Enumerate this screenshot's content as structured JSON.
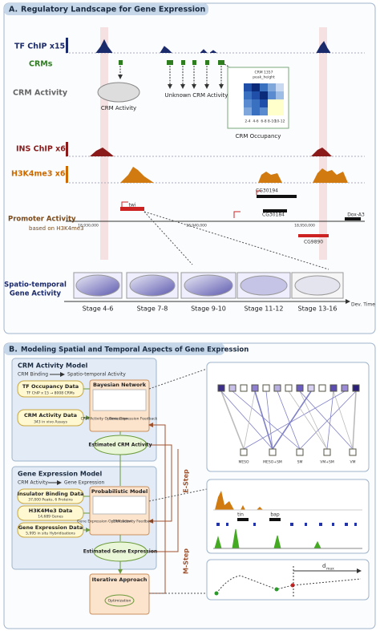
{
  "panel_a": {
    "label": "A.",
    "title": "Regulatory Landscape for Gene Expression",
    "tracks": {
      "tf_chip": "TF ChIP x15",
      "crms": "CRMs",
      "crm_activity": "CRM Activity",
      "ins_chip": "INS ChIP x6",
      "h3k4me3": "H3K4me3 x6",
      "promoter_activity": "Promoter Activity",
      "promoter_note": "based on H3K4me3",
      "spatio_temporal": "Spatio-temporal",
      "gene_activity": "Gene Activity"
    },
    "annotations": {
      "crm_activity": "CRM Activity",
      "unknown": "Unknown CRM Activity",
      "occupancy": "CRM Occupancy"
    },
    "heatmap": {
      "title": "CRM 1357",
      "subtitle": "peak_height",
      "x_labels": [
        "2-4",
        "4-6",
        "6-8",
        "8-10",
        "10-12"
      ]
    },
    "genes": [
      "twi",
      "CG30194",
      "CG30184",
      "Dox-A3",
      "CG9890"
    ],
    "coordinates": [
      "18,930,000",
      "18,940,000",
      "18,950,000"
    ],
    "stages": [
      "Stage 4-6",
      "Stage 7-8",
      "Stage 9-10",
      "Stage 11-12",
      "Stage 13-16"
    ],
    "time_axis": "Dev. Time"
  },
  "panel_b": {
    "label": "B.",
    "title": "Modeling Spatial and Temporal Aspects of Gene Expression",
    "crm_model": {
      "title": "CRM Activity Model",
      "from": "CRM Binding",
      "to": "Spatio-temporal Activity",
      "tf_data": "TF Occupancy Data",
      "tf_note": "TF ChIP x 15 → 8008 CRMs",
      "activity_data": "CRM Activity Data",
      "activity_note": "343 in vivo Assays",
      "network": "Bayesian Network",
      "optimization": "CRM Activity Optimization",
      "feedback": "Gene Expression Feedback",
      "estimate": "Estimated CRM Activity"
    },
    "expression_model": {
      "title": "Gene Expression Model",
      "from": "CRM Activity",
      "to": "Gene Expression",
      "insulator_data": "Insulator Binding Data",
      "insulator_note": "37,000 Peaks, 6 Proteins",
      "h3k4me3_data": "H3K4Me3 Data",
      "h3k4me3_note": "14,689 Genes",
      "expression_data": "Gene Expression Data",
      "expression_note": "5,995 in situ Hybridisations",
      "model": "Probabilistic Model",
      "optimization": "Gene Expression Optimization",
      "feedback": "CRM Activity Feedback",
      "estimate": "Estimated Gene Expression"
    },
    "iterative": "Iterative Approach",
    "iterative_note": "Optimization",
    "e_step": "E-Step",
    "m_step": "M-Step",
    "network_labels": [
      "MESO",
      "MESO+SM",
      "SM",
      "VM+SM",
      "VM"
    ],
    "genes": [
      "tin",
      "bap"
    ],
    "distance": "d",
    "distance_sub": "max"
  }
}
